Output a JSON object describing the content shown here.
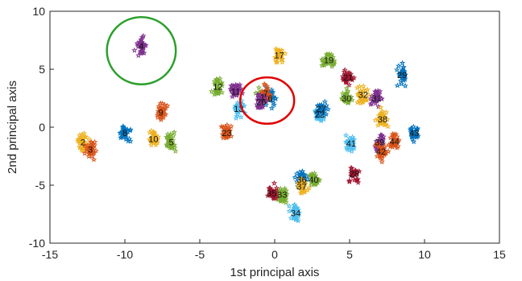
{
  "chart_data": {
    "type": "scatter",
    "title": "",
    "xlabel": "1st principal axis",
    "ylabel": "2nd principal axis",
    "xlim": [
      -15,
      15
    ],
    "ylim": [
      -10,
      10
    ],
    "xticks": [
      -15,
      -10,
      -5,
      0,
      5,
      10,
      15
    ],
    "yticks": [
      -10,
      -5,
      0,
      5,
      10
    ],
    "grid": false,
    "marker": "star",
    "clusters": [
      {
        "label": "1",
        "x": -0.8,
        "y": 2.6,
        "color": "#77ac30"
      },
      {
        "label": "2",
        "x": -12.8,
        "y": -1.3,
        "color": "#edb120"
      },
      {
        "label": "3",
        "x": -12.3,
        "y": -1.9,
        "color": "#d95319"
      },
      {
        "label": "4",
        "x": -8.9,
        "y": 7.0,
        "color": "#7e2f8e"
      },
      {
        "label": "5",
        "x": -6.9,
        "y": -1.3,
        "color": "#77ac30"
      },
      {
        "label": "6",
        "x": -0.3,
        "y": 2.5,
        "color": "#0072bd"
      },
      {
        "label": "7",
        "x": -0.6,
        "y": 2.9,
        "color": "#d95319"
      },
      {
        "label": "8",
        "x": -10.0,
        "y": -0.5,
        "color": "#0072bd"
      },
      {
        "label": "9",
        "x": -7.6,
        "y": 1.3,
        "color": "#d95319"
      },
      {
        "label": "10",
        "x": -8.1,
        "y": -1.0,
        "color": "#edb120"
      },
      {
        "label": "11",
        "x": -2.6,
        "y": 3.1,
        "color": "#7e2f8e"
      },
      {
        "label": "12",
        "x": -3.8,
        "y": 3.5,
        "color": "#77ac30"
      },
      {
        "label": "13",
        "x": -2.4,
        "y": 1.6,
        "color": "#4dbeee"
      },
      {
        "label": "17",
        "x": 0.3,
        "y": 6.2,
        "color": "#edb120"
      },
      {
        "label": "19",
        "x": 3.6,
        "y": 5.8,
        "color": "#77ac30"
      },
      {
        "label": "21",
        "x": 4.9,
        "y": 4.3,
        "color": "#a2142f"
      },
      {
        "label": "22",
        "x": 3.0,
        "y": 1.1,
        "color": "#4dbeee"
      },
      {
        "label": "23",
        "x": -3.2,
        "y": -0.5,
        "color": "#d95319"
      },
      {
        "label": "26",
        "x": -0.9,
        "y": 2.2,
        "color": "#7e2f8e"
      },
      {
        "label": "27",
        "x": 3.1,
        "y": 1.6,
        "color": "#0072bd"
      },
      {
        "label": "28",
        "x": 5.3,
        "y": -4.0,
        "color": "#a2142f"
      },
      {
        "label": "29",
        "x": 8.5,
        "y": 4.5,
        "color": "#0072bd"
      },
      {
        "label": "30",
        "x": 4.8,
        "y": 2.5,
        "color": "#77ac30"
      },
      {
        "label": "31",
        "x": 6.8,
        "y": 2.5,
        "color": "#7e2f8e"
      },
      {
        "label": "32",
        "x": 5.9,
        "y": 2.8,
        "color": "#edb120"
      },
      {
        "label": "33",
        "x": 0.5,
        "y": -5.8,
        "color": "#77ac30"
      },
      {
        "label": "34",
        "x": 1.4,
        "y": -7.4,
        "color": "#4dbeee"
      },
      {
        "label": "35",
        "x": -0.2,
        "y": -5.7,
        "color": "#a2142f"
      },
      {
        "label": "36",
        "x": 1.8,
        "y": -4.5,
        "color": "#0072bd"
      },
      {
        "label": "37",
        "x": 1.8,
        "y": -5.1,
        "color": "#edb120"
      },
      {
        "label": "38",
        "x": 7.2,
        "y": 0.7,
        "color": "#edb120"
      },
      {
        "label": "39",
        "x": 7.0,
        "y": -1.3,
        "color": "#7e2f8e"
      },
      {
        "label": "40",
        "x": 2.6,
        "y": -4.5,
        "color": "#77ac30"
      },
      {
        "label": "41",
        "x": 5.1,
        "y": -1.4,
        "color": "#4dbeee"
      },
      {
        "label": "42",
        "x": 7.1,
        "y": -2.1,
        "color": "#d95319"
      },
      {
        "label": "43",
        "x": 9.3,
        "y": -0.5,
        "color": "#0072bd"
      },
      {
        "label": "44",
        "x": 8.0,
        "y": -1.2,
        "color": "#d95319"
      }
    ],
    "annotations": [
      {
        "type": "ellipse",
        "color": "#2ca02c",
        "center": [
          -8.9,
          6.6
        ],
        "radius": [
          2.3,
          2.9
        ]
      },
      {
        "type": "ellipse",
        "color": "#e00000",
        "center": [
          -0.5,
          2.3
        ],
        "radius": [
          1.8,
          2.0
        ]
      }
    ]
  }
}
